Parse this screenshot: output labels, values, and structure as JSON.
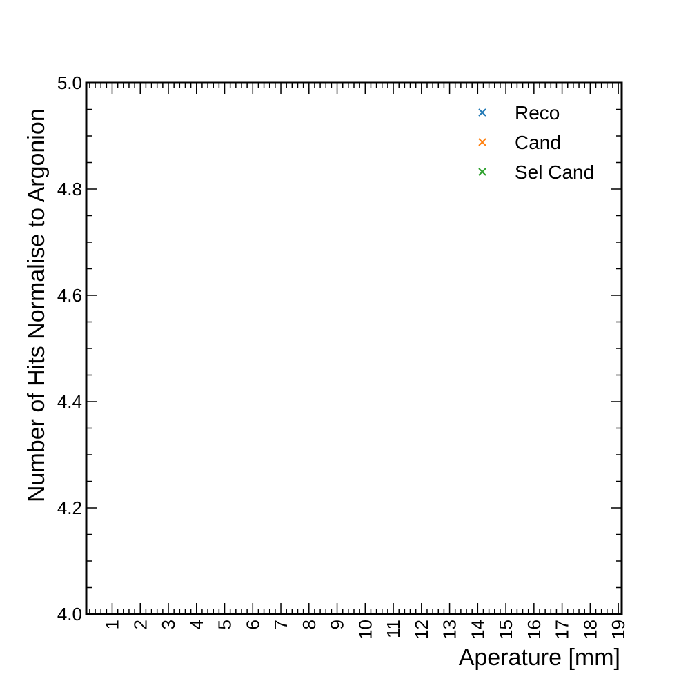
{
  "chart_data": {
    "type": "scatter",
    "title": "",
    "xlabel": "Aperature [mm]",
    "ylabel": "Number of Hits Normalise to Argonion",
    "xlim": [
      0.08,
      19.12
    ],
    "ylim": [
      4.0,
      5.0
    ],
    "x_ticks": [
      1,
      2,
      3,
      4,
      5,
      6,
      7,
      8,
      9,
      10,
      11,
      12,
      13,
      14,
      15,
      16,
      17,
      18,
      19
    ],
    "x_tick_labels": [
      "1",
      "2",
      "3",
      "4",
      "5",
      "6",
      "7",
      "8",
      "9",
      "10",
      "11",
      "12",
      "13",
      "14",
      "15",
      "16",
      "17",
      "18",
      "19"
    ],
    "y_ticks": [
      4.0,
      4.2,
      4.4,
      4.6,
      4.8,
      5.0
    ],
    "y_tick_labels": [
      "4.0",
      "4.2",
      "4.4",
      "4.6",
      "4.8",
      "5.0"
    ],
    "grid": false,
    "legend_position": "top-right",
    "series": [
      {
        "name": "Reco",
        "marker": "x",
        "color": "#1f77b4",
        "x": [],
        "y": []
      },
      {
        "name": "Cand",
        "marker": "x",
        "color": "#ff7f0e",
        "x": [],
        "y": []
      },
      {
        "name": "Sel Cand",
        "marker": "x",
        "color": "#2ca02c",
        "x": [],
        "y": []
      }
    ]
  }
}
